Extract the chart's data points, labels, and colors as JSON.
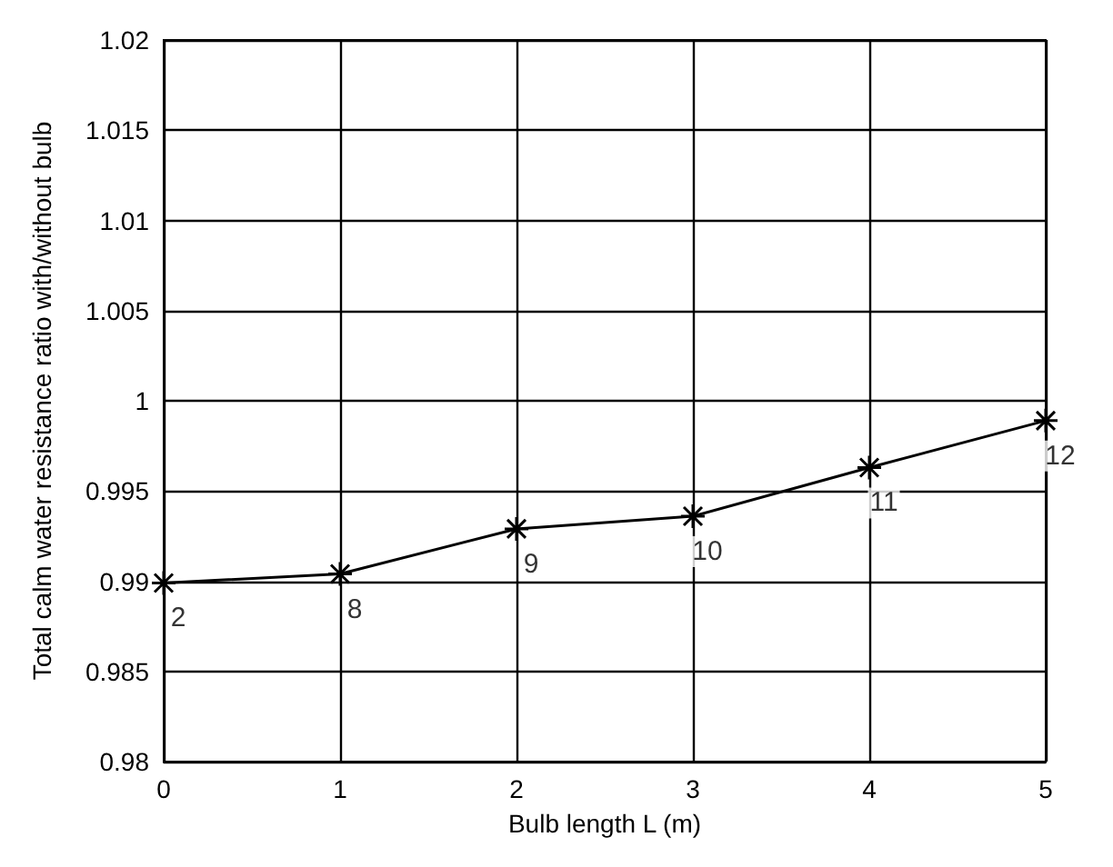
{
  "chart_data": {
    "type": "line",
    "xlabel": "Bulb length L (m)",
    "ylabel": "Total calm water resistance ratio with/without bulb",
    "x": [
      0,
      1,
      2,
      3,
      4,
      5
    ],
    "series": [
      {
        "color": "#000000",
        "values": [
          0.9899,
          0.9904,
          0.9929,
          0.9936,
          0.9963,
          0.9989
        ]
      }
    ],
    "xlim": [
      0,
      5
    ],
    "xticks": [
      0,
      1,
      2,
      3,
      4,
      5
    ],
    "ylim": [
      0.98,
      1.02
    ],
    "yticks": [
      0.98,
      0.985,
      0.99,
      0.995,
      1,
      1.005,
      1.01,
      1.015,
      1.02
    ],
    "grid": true,
    "marker": "cross",
    "line_style": "solid",
    "annotations": [
      {
        "text": "2",
        "x": 0,
        "y": 0.9899
      },
      {
        "text": "8",
        "x": 1,
        "y": 0.9904
      },
      {
        "text": "9",
        "x": 2,
        "y": 0.9929
      },
      {
        "text": "10",
        "x": 3,
        "y": 0.9936
      },
      {
        "text": "11",
        "x": 4,
        "y": 0.9963
      },
      {
        "text": "12",
        "x": 5,
        "y": 0.9989
      }
    ]
  }
}
